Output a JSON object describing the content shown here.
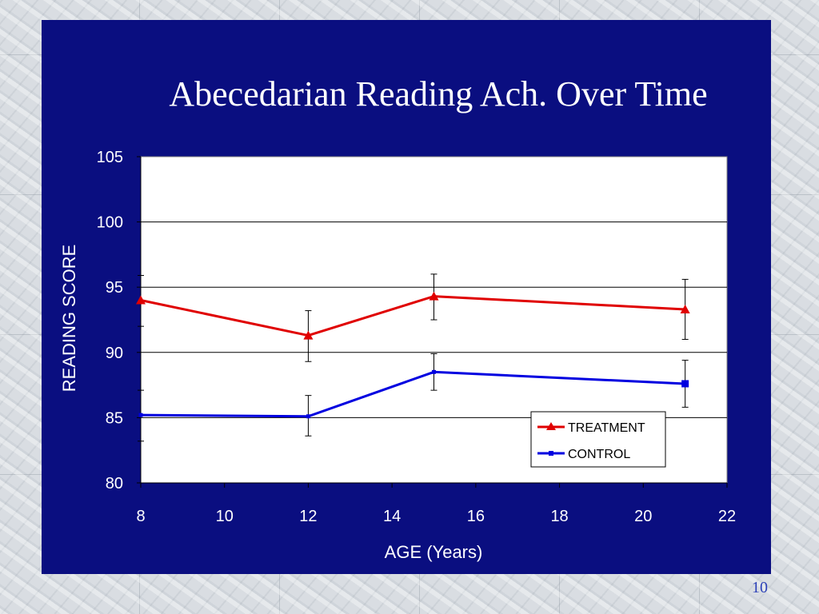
{
  "slide": {
    "title": "Abecedarian Reading Ach. Over Time",
    "number": "10"
  },
  "chart_data": {
    "type": "line",
    "title": "",
    "xlabel": "AGE (Years)",
    "ylabel": "READING SCORE",
    "xlim": [
      8,
      22
    ],
    "ylim": [
      80,
      105
    ],
    "x_ticks": [
      8,
      10,
      12,
      14,
      16,
      18,
      20,
      22
    ],
    "y_ticks": [
      80,
      85,
      90,
      95,
      100,
      105
    ],
    "grid": "horizontal",
    "legend_position": "bottom-right",
    "error_bars": true,
    "series": [
      {
        "name": "TREATMENT",
        "color": "#e00000",
        "marker": "triangle",
        "x": [
          8,
          12,
          15,
          21
        ],
        "y": [
          94.0,
          91.3,
          94.3,
          93.3
        ],
        "error_low": [
          92.0,
          89.3,
          92.5,
          91.0
        ],
        "error_high": [
          95.9,
          93.2,
          96.0,
          95.6
        ]
      },
      {
        "name": "CONTROL",
        "color": "#0000e0",
        "marker": "square",
        "x": [
          8,
          12,
          15,
          21
        ],
        "y": [
          85.2,
          85.1,
          88.5,
          87.6
        ],
        "error_low": [
          83.2,
          83.6,
          87.1,
          85.8
        ],
        "error_high": [
          87.1,
          86.7,
          89.9,
          89.4
        ]
      }
    ]
  }
}
